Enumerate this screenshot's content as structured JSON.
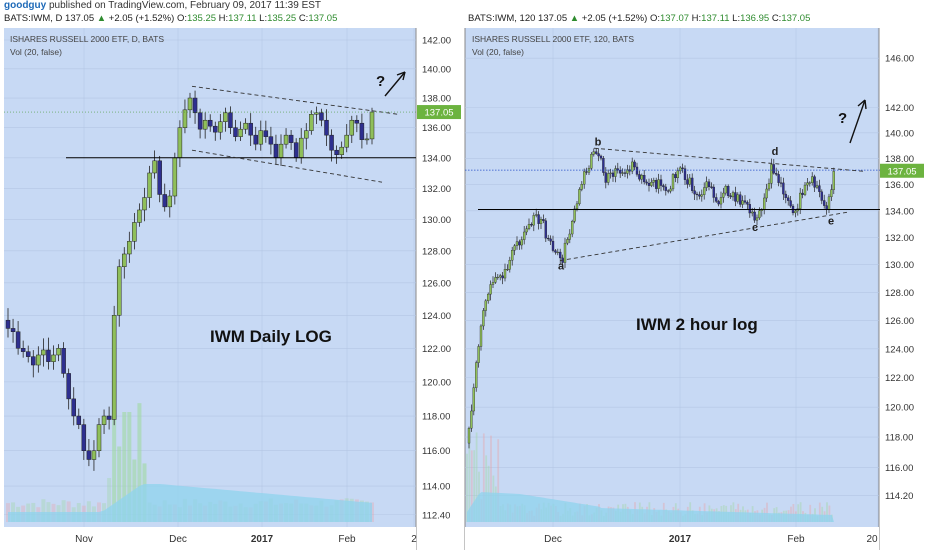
{
  "header": {
    "user": "goodguy",
    "published": "published on TradingView.com, February 09, 2017 11:39 EST"
  },
  "panels": [
    {
      "ohlc": {
        "symbol": "BATS:IWM, D",
        "last": "137.05",
        "arrow": "▲",
        "change": "+2.05 (+1.52%)",
        "o_label": "O:",
        "o": "135.25",
        "h_label": "H:",
        "h": "137.11",
        "l_label": "L:",
        "l": "135.25",
        "c_label": "C:",
        "c": "137.05"
      },
      "title": "ISHARES RUSSELL 2000 ETF, D, BATS",
      "vol_label": "Vol (20, false)",
      "annotation": "IWM Daily LOG",
      "question": "?",
      "price_tag": "137.05"
    },
    {
      "ohlc": {
        "symbol": "BATS:IWM, 120",
        "last": "137.05",
        "arrow": "▲",
        "change": "+2.05 (+1.52%)",
        "o_label": "O:",
        "o": "137.07",
        "h_label": "H:",
        "h": "137.11",
        "l_label": "L:",
        "l": "136.95",
        "c_label": "C:",
        "c": "137.05"
      },
      "title": "ISHARES RUSSELL 2000 ETF, 120, BATS",
      "vol_label": "Vol (20, false)",
      "annotation": "IWM 2 hour log",
      "question": "?",
      "price_tag": "137.05",
      "wave_labels": [
        "a",
        "b",
        "c",
        "d",
        "e"
      ]
    }
  ],
  "colors": {
    "background": "#c7d9f4",
    "up_candle": "#8fbf5a",
    "down_candle": "#2e2f8f",
    "volume": "#8fd3ee",
    "volume_bar": "#9fd8a0",
    "level_line": "#000000",
    "price_line": "#2850c8"
  },
  "chart_data": [
    {
      "type": "candlestick",
      "interval": "D",
      "title": "ISHARES RUSSELL 2000 ETF, D, BATS",
      "x_ticks": [
        "Nov",
        "Dec",
        "2017",
        "Feb",
        "2"
      ],
      "y_ticks": [
        "142.00",
        "140.00",
        "138.00",
        "136.00",
        "134.00",
        "132.00",
        "130.00",
        "128.00",
        "126.00",
        "124.00",
        "122.00",
        "120.00",
        "118.00",
        "116.00",
        "114.00",
        "112.40"
      ],
      "scale": "log",
      "horizontal_level": 134.0,
      "last_price": 137.05,
      "closes": [
        123.2,
        123.0,
        122.0,
        121.8,
        121.5,
        121.0,
        121.6,
        121.9,
        121.2,
        121.6,
        122.0,
        120.5,
        119.0,
        118.0,
        117.5,
        116.0,
        115.5,
        116.0,
        117.5,
        118.0,
        117.8,
        124.0,
        127.0,
        127.8,
        128.6,
        129.8,
        130.6,
        131.4,
        133.0,
        133.8,
        131.6,
        130.8,
        131.5,
        134.0,
        136.0,
        137.2,
        138.0,
        137.0,
        135.9,
        136.5,
        136.1,
        135.7,
        136.4,
        137.0,
        136.0,
        135.4,
        135.9,
        136.3,
        135.5,
        134.9,
        135.8,
        135.4,
        134.9,
        134.0,
        134.9,
        135.5,
        135.0,
        134.0,
        135.3,
        135.8,
        136.9,
        137.0,
        136.5,
        135.5,
        134.5,
        134.2,
        134.7,
        135.5,
        136.5,
        136.3,
        135.2,
        135.25,
        137.05
      ]
    },
    {
      "type": "candlestick",
      "interval": "120",
      "title": "ISHARES RUSSELL 2000 ETF, 120, BATS",
      "x_ticks": [
        "Dec",
        "2017",
        "Feb",
        "20"
      ],
      "y_ticks": [
        "146.00",
        "142.00",
        "140.00",
        "138.00",
        "136.00",
        "134.00",
        "132.00",
        "130.00",
        "128.00",
        "126.00",
        "124.00",
        "122.00",
        "120.00",
        "118.00",
        "116.00",
        "114.20"
      ],
      "scale": "log",
      "horizontal_level": 134.1,
      "last_price": 137.05,
      "wave_points": [
        {
          "label": "a",
          "price": 130.4
        },
        {
          "label": "b",
          "price": 138.4
        },
        {
          "label": "c",
          "price": 133.3
        },
        {
          "label": "d",
          "price": 137.5
        },
        {
          "label": "e",
          "price": 133.8
        }
      ]
    }
  ]
}
